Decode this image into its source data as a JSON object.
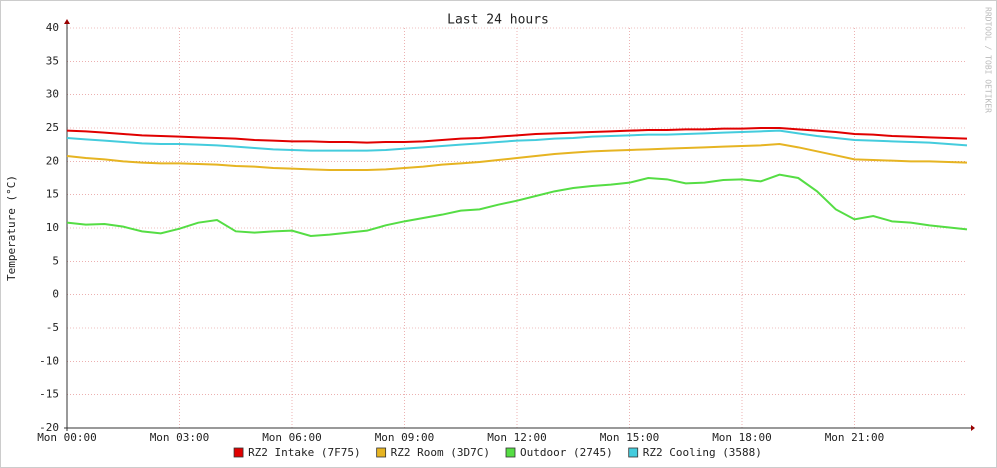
{
  "chart_data": {
    "type": "line",
    "title": "Last 24 hours",
    "y_label": "Temperature (°C)",
    "watermark": "RRDTOOL / TOBI OETIKER",
    "x": [
      0,
      0.5,
      1,
      1.5,
      2,
      2.5,
      3,
      3.5,
      4,
      4.5,
      5,
      5.5,
      6,
      6.5,
      7,
      7.5,
      8,
      8.5,
      9,
      9.5,
      10,
      10.5,
      11,
      11.5,
      12,
      12.5,
      13,
      13.5,
      14,
      14.5,
      15,
      15.5,
      16,
      16.5,
      17,
      17.5,
      18,
      18.5,
      19,
      19.5,
      20,
      20.5,
      21,
      21.5,
      22,
      22.5,
      23,
      23.5,
      24
    ],
    "xlim": [
      0,
      24
    ],
    "xticks": [
      {
        "value": 0,
        "label": "Mon 00:00"
      },
      {
        "value": 3,
        "label": "Mon 03:00"
      },
      {
        "value": 6,
        "label": "Mon 06:00"
      },
      {
        "value": 9,
        "label": "Mon 09:00"
      },
      {
        "value": 12,
        "label": "Mon 12:00"
      },
      {
        "value": 15,
        "label": "Mon 15:00"
      },
      {
        "value": 18,
        "label": "Mon 18:00"
      },
      {
        "value": 21,
        "label": "Mon 21:00"
      }
    ],
    "ylim": [
      -20,
      40
    ],
    "yticks": [
      -20,
      -15,
      -10,
      -5,
      0,
      5,
      10,
      15,
      20,
      25,
      30,
      35,
      40
    ],
    "grid": true,
    "series": [
      {
        "name": "RZ2 Intake (7F75)",
        "color": "#e00000",
        "values": [
          24.6,
          24.5,
          24.3,
          24.1,
          23.9,
          23.8,
          23.7,
          23.6,
          23.5,
          23.4,
          23.2,
          23.1,
          23.0,
          23.0,
          22.9,
          22.9,
          22.8,
          22.9,
          22.9,
          23.0,
          23.2,
          23.4,
          23.5,
          23.7,
          23.9,
          24.1,
          24.2,
          24.3,
          24.4,
          24.5,
          24.6,
          24.7,
          24.7,
          24.8,
          24.8,
          24.9,
          24.9,
          25.0,
          25.0,
          24.8,
          24.6,
          24.4,
          24.1,
          24.0,
          23.8,
          23.7,
          23.6,
          23.5,
          23.4
        ]
      },
      {
        "name": "RZ2 Room (3D7C)",
        "color": "#e6b422",
        "values": [
          20.8,
          20.5,
          20.3,
          20.0,
          19.8,
          19.7,
          19.7,
          19.6,
          19.5,
          19.3,
          19.2,
          19.0,
          18.9,
          18.8,
          18.7,
          18.7,
          18.7,
          18.8,
          19.0,
          19.2,
          19.5,
          19.7,
          19.9,
          20.2,
          20.5,
          20.8,
          21.1,
          21.3,
          21.5,
          21.6,
          21.7,
          21.8,
          21.9,
          22.0,
          22.1,
          22.2,
          22.3,
          22.4,
          22.6,
          22.1,
          21.5,
          20.9,
          20.3,
          20.2,
          20.1,
          20.0,
          20.0,
          19.9,
          19.8
        ]
      },
      {
        "name": "Outdoor (2745)",
        "color": "#55dd44",
        "values": [
          10.8,
          10.5,
          10.6,
          10.2,
          9.5,
          9.2,
          9.9,
          10.8,
          11.2,
          9.5,
          9.3,
          9.5,
          9.6,
          8.8,
          9.0,
          9.3,
          9.6,
          10.4,
          11.0,
          11.5,
          12.0,
          12.6,
          12.8,
          13.5,
          14.1,
          14.8,
          15.5,
          16.0,
          16.3,
          16.5,
          16.8,
          17.5,
          17.3,
          16.7,
          16.8,
          17.2,
          17.3,
          17.0,
          18.0,
          17.5,
          15.5,
          12.8,
          11.3,
          11.8,
          11.0,
          10.8,
          10.4,
          10.1,
          9.8
        ]
      },
      {
        "name": "RZ2 Cooling (3588)",
        "color": "#44ccdd",
        "values": [
          23.5,
          23.3,
          23.1,
          22.9,
          22.7,
          22.6,
          22.6,
          22.5,
          22.4,
          22.2,
          22.0,
          21.8,
          21.7,
          21.6,
          21.6,
          21.6,
          21.6,
          21.7,
          21.9,
          22.1,
          22.3,
          22.5,
          22.7,
          22.9,
          23.1,
          23.2,
          23.4,
          23.5,
          23.7,
          23.8,
          23.9,
          24.0,
          24.0,
          24.1,
          24.2,
          24.3,
          24.4,
          24.5,
          24.6,
          24.2,
          23.8,
          23.5,
          23.2,
          23.1,
          23.0,
          22.9,
          22.8,
          22.6,
          22.4
        ]
      }
    ]
  }
}
